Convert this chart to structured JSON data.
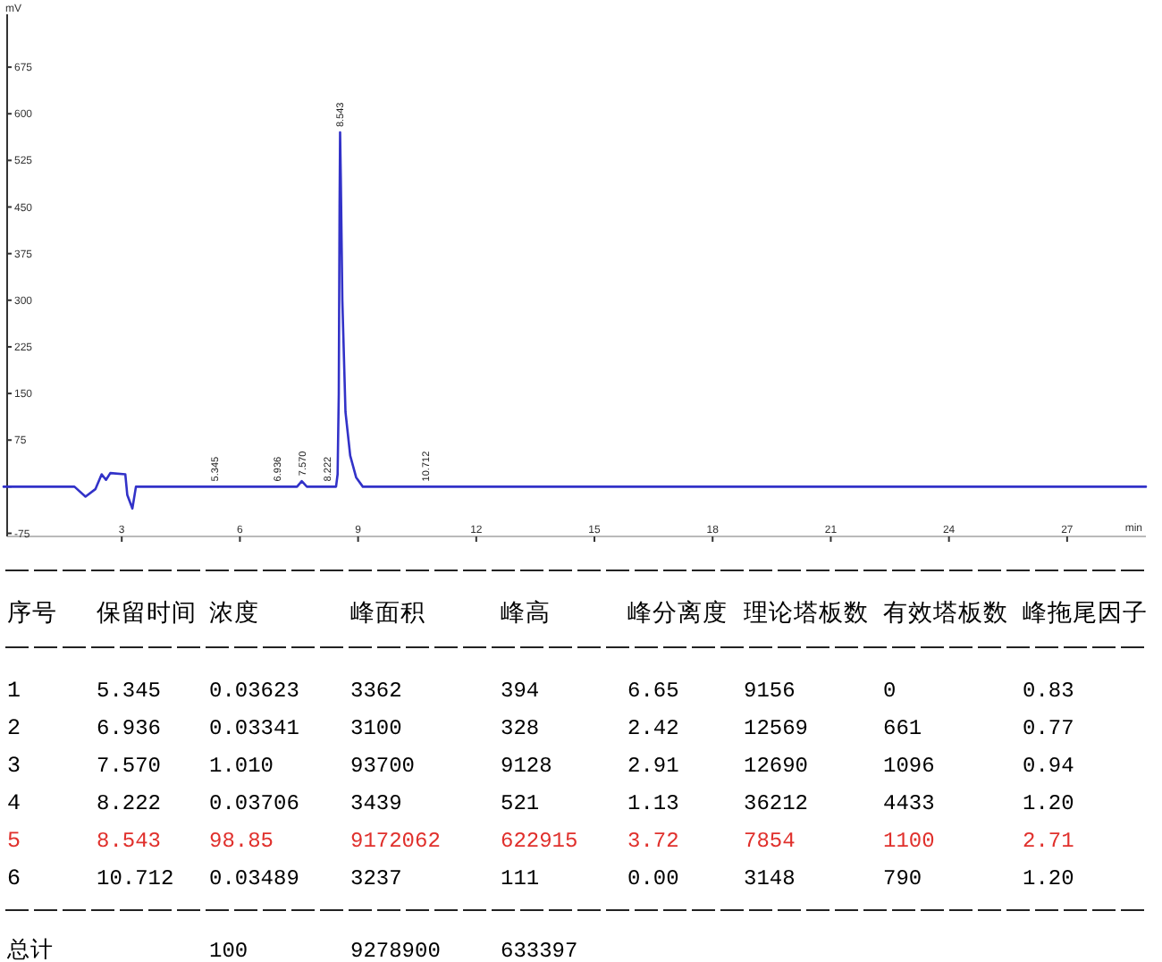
{
  "chart_data": [
    {
      "type": "line",
      "xlabel": "min",
      "ylabel": "mV",
      "color": "#3232c8",
      "x": [
        0,
        1.8,
        2.08,
        2.33,
        2.49,
        2.6,
        2.71,
        3.09,
        3.14,
        3.27,
        3.36,
        7.45,
        7.57,
        7.7,
        8.44,
        8.48,
        8.51,
        8.53,
        8.543,
        8.56,
        8.6,
        8.68,
        8.8,
        8.95,
        9.12,
        29
      ],
      "values": [
        0,
        0,
        -16,
        -4,
        20,
        11,
        22,
        20,
        -13,
        -35,
        0,
        0,
        9,
        0,
        0,
        20,
        150,
        450,
        570,
        500,
        300,
        120,
        50,
        15,
        0,
        0
      ],
      "xlim": [
        0,
        29
      ],
      "xticks": [
        3,
        6,
        9,
        12,
        15,
        18,
        21,
        24,
        27
      ],
      "ylim": [
        -80,
        760
      ],
      "yticks": [
        -75,
        {
          "value": 0,
          "label": null
        },
        75,
        150,
        225,
        300,
        375,
        450,
        525,
        600,
        675
      ],
      "annotations": [
        {
          "text": "5.345",
          "x": 5.345,
          "y": 0
        },
        {
          "text": "6.936",
          "x": 6.936,
          "y": 0
        },
        {
          "text": "7.570",
          "x": 7.57,
          "y": 9
        },
        {
          "text": "8.222",
          "x": 8.222,
          "y": 0
        },
        {
          "text": "8.543",
          "x": 8.543,
          "y": 570
        },
        {
          "text": "10.712",
          "x": 10.712,
          "y": 0
        }
      ]
    },
    {
      "type": "heatmap",
      "ylabel": "序号",
      "categories": [
        "保留时间",
        "浓度",
        "峰面积",
        "峰高",
        "峰分离度",
        "理论塔板数",
        "有效塔板数",
        "峰拖尾因子"
      ],
      "y_categories": [
        "1",
        "2",
        "3",
        "4",
        "5",
        "6",
        "总计"
      ],
      "colors": [
        "#000000",
        "#000000",
        "#000000",
        "#000000",
        "#e0302c",
        "#000000",
        "#000000"
      ],
      "cells": [
        [
          5.345,
          0.03623,
          3362,
          394,
          6.65,
          9156,
          0,
          0.83
        ],
        [
          6.936,
          0.03341,
          3100,
          328,
          2.42,
          12569,
          661,
          0.77
        ],
        [
          7.57,
          1.01,
          93700,
          9128,
          2.91,
          12690,
          1096,
          0.94
        ],
        [
          8.222,
          0.03706,
          3439,
          521,
          1.13,
          36212,
          4433,
          1.2
        ],
        [
          8.543,
          98.85,
          9172062,
          622915,
          3.72,
          7854,
          1100,
          2.71
        ],
        [
          10.712,
          0.03489,
          3237,
          111,
          0,
          3148,
          790,
          1.2
        ],
        [
          null,
          100,
          9278900,
          633397,
          null,
          null,
          null,
          null
        ]
      ],
      "cell_labels": [
        [
          "5.345",
          "0.03623",
          "3362",
          "394",
          "6.65",
          "9156",
          "0",
          "0.83"
        ],
        [
          "6.936",
          "0.03341",
          "3100",
          "328",
          "2.42",
          "12569",
          "661",
          "0.77"
        ],
        [
          "7.570",
          "1.010",
          "93700",
          "9128",
          "2.91",
          "12690",
          "1096",
          "0.94"
        ],
        [
          "8.222",
          "0.03706",
          "3439",
          "521",
          "1.13",
          "36212",
          "4433",
          "1.20"
        ],
        [
          "8.543",
          "98.85",
          "9172062",
          "622915",
          "3.72",
          "7854",
          "1100",
          "2.71"
        ],
        [
          "10.712",
          "0.03489",
          "3237",
          "111",
          "0.00",
          "3148",
          "790",
          "1.20"
        ],
        [
          null,
          "100",
          "9278900",
          "633397",
          null,
          null,
          null,
          null
        ]
      ]
    }
  ]
}
